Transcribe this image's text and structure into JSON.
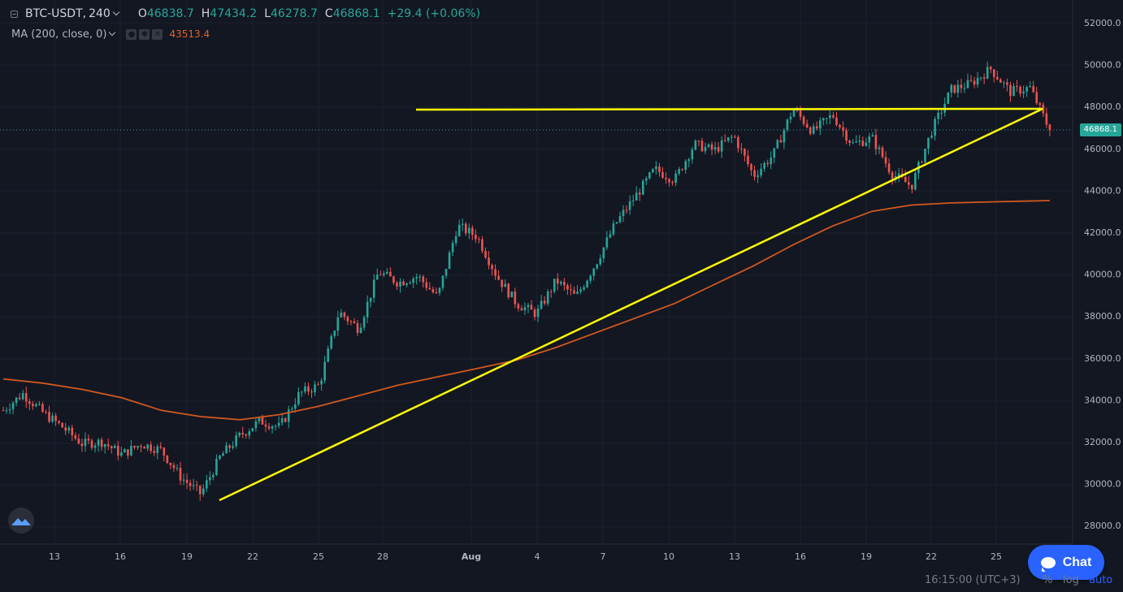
{
  "header": {
    "symbol": "BTC-USDT",
    "separator": ",",
    "interval": "240",
    "ohlc": {
      "o_label": "O",
      "o_value": "46838.7",
      "h_label": "H",
      "h_value": "47434.2",
      "l_label": "L",
      "l_value": "46278.7",
      "c_label": "C",
      "c_value": "46868.1",
      "change": "+29.4 (+0.06%)"
    },
    "indicator": {
      "label": "MA (200, close, 0)",
      "value": "43513.4"
    }
  },
  "price_tag": "46868.1",
  "time_readout": "16:15:00 (UTC+3)",
  "bottom_options": {
    "percent": "%",
    "log": "log",
    "auto": "auto"
  },
  "chat_label": "Chat",
  "colors": {
    "up": "#26a69a",
    "down": "#ef5350",
    "ma": "#d2581f",
    "trendline": "#ffff00",
    "accent": "#2962ff"
  },
  "icons": [
    "collapse-icon",
    "chevron-down-icon",
    "settings-icon",
    "visibility-icon",
    "close-icon",
    "brand-logo-icon",
    "chat-bubble-icon"
  ],
  "chart_data": {
    "type": "candlestick",
    "x_tick_labels": [
      "13",
      "16",
      "19",
      "22",
      "25",
      "28",
      "Aug",
      "4",
      "7",
      "10",
      "13",
      "16",
      "19",
      "22",
      "25"
    ],
    "y_tick_labels": [
      "52000.0",
      "50000.0",
      "48000.0",
      "46000.0",
      "44000.0",
      "42000.0",
      "40000.0",
      "38000.0",
      "36000.0",
      "34000.0",
      "32000.0",
      "30000.0",
      "28000.0"
    ],
    "y_range": [
      27000,
      52700
    ],
    "last_price": 46868.1,
    "grid": true,
    "series": [
      {
        "name": "BTC-USDT",
        "close_points": [
          [
            0,
            33500
          ],
          [
            1.5,
            34300
          ],
          [
            3,
            33400
          ],
          [
            4.5,
            32700
          ],
          [
            6,
            31900
          ],
          [
            7.5,
            32000
          ],
          [
            9,
            31400
          ],
          [
            10.5,
            31900
          ],
          [
            12,
            31600
          ],
          [
            13.5,
            30300
          ],
          [
            15,
            29500
          ],
          [
            16.5,
            31300
          ],
          [
            18,
            32300
          ],
          [
            19.5,
            33000
          ],
          [
            21,
            32700
          ],
          [
            22.5,
            34300
          ],
          [
            24,
            34700
          ],
          [
            25.5,
            38200
          ],
          [
            27,
            37400
          ],
          [
            28.5,
            40100
          ],
          [
            30,
            39600
          ],
          [
            31.5,
            39900
          ],
          [
            33,
            38900
          ],
          [
            34.5,
            42300
          ],
          [
            36,
            41800
          ],
          [
            37.5,
            39900
          ],
          [
            39,
            38600
          ],
          [
            40.5,
            38100
          ],
          [
            42,
            39700
          ],
          [
            43.5,
            38900
          ],
          [
            45,
            40500
          ],
          [
            46.5,
            42400
          ],
          [
            48,
            43700
          ],
          [
            49.5,
            45000
          ],
          [
            51,
            44500
          ],
          [
            52.5,
            46200
          ],
          [
            54,
            45900
          ],
          [
            55.5,
            46600
          ],
          [
            57,
            44700
          ],
          [
            58.5,
            45700
          ],
          [
            60,
            47900
          ],
          [
            61.5,
            46800
          ],
          [
            63,
            47600
          ],
          [
            64.5,
            46200
          ],
          [
            66,
            46500
          ],
          [
            67.5,
            44800
          ],
          [
            69,
            44200
          ],
          [
            70.5,
            46800
          ],
          [
            72,
            48800
          ],
          [
            73.5,
            49100
          ],
          [
            75,
            49800
          ],
          [
            76.5,
            48700
          ],
          [
            78,
            48900
          ],
          [
            79.5,
            46868.1
          ]
        ]
      },
      {
        "name": "MA (200, close, 0)",
        "points": [
          [
            0,
            35000
          ],
          [
            3,
            34800
          ],
          [
            6,
            34500
          ],
          [
            9,
            34100
          ],
          [
            12,
            33500
          ],
          [
            15,
            33200
          ],
          [
            18,
            33050
          ],
          [
            21,
            33300
          ],
          [
            24,
            33700
          ],
          [
            27,
            34200
          ],
          [
            30,
            34700
          ],
          [
            33,
            35100
          ],
          [
            36,
            35500
          ],
          [
            39,
            35900
          ],
          [
            42,
            36500
          ],
          [
            45,
            37200
          ],
          [
            48,
            37900
          ],
          [
            51,
            38600
          ],
          [
            54,
            39500
          ],
          [
            57,
            40400
          ],
          [
            60,
            41400
          ],
          [
            63,
            42300
          ],
          [
            66,
            43000
          ],
          [
            69,
            43300
          ],
          [
            72,
            43400
          ],
          [
            75,
            43450
          ],
          [
            79.5,
            43513.4
          ]
        ]
      },
      {
        "name": "support-trendline",
        "points": [
          [
            15,
            29200
          ],
          [
            79.5,
            47800
          ]
        ]
      },
      {
        "name": "resistance-line",
        "points": [
          [
            30,
            47800
          ],
          [
            79.5,
            47800
          ]
        ]
      }
    ]
  }
}
